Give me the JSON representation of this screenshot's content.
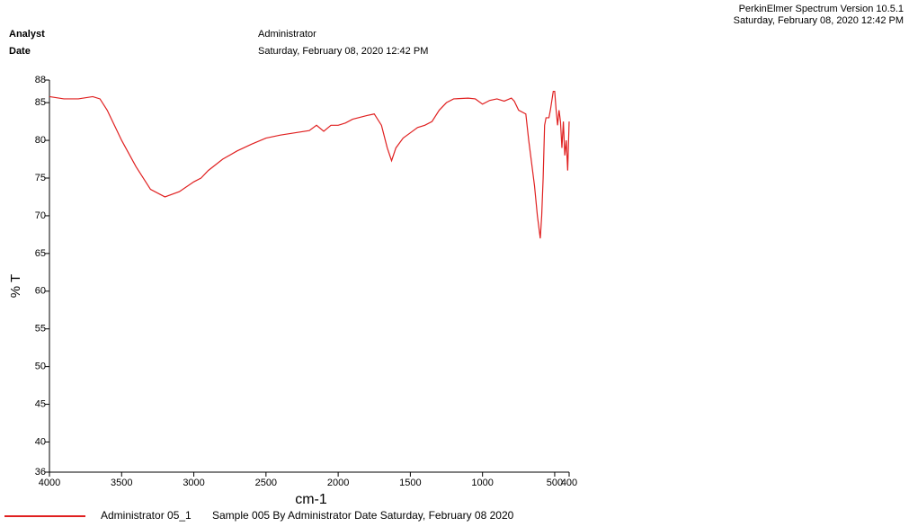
{
  "header": {
    "software": "PerkinElmer Spectrum Version 10.5.1",
    "printed": "Saturday, February 08, 2020 12:42 PM",
    "analyst_label": "Analyst",
    "analyst": "Administrator",
    "date_label": "Date",
    "date": "Saturday, February 08, 2020 12:42 PM"
  },
  "chart_data": {
    "type": "line",
    "xlabel": "cm-1",
    "ylabel": "% T",
    "x": [
      4000,
      3900,
      3800,
      3700,
      3650,
      3600,
      3500,
      3400,
      3300,
      3200,
      3100,
      3000,
      2950,
      2900,
      2800,
      2700,
      2600,
      2500,
      2400,
      2300,
      2200,
      2150,
      2100,
      2050,
      2000,
      1950,
      1900,
      1800,
      1750,
      1700,
      1660,
      1630,
      1600,
      1550,
      1500,
      1450,
      1400,
      1350,
      1300,
      1250,
      1200,
      1100,
      1050,
      1000,
      950,
      900,
      850,
      800,
      780,
      750,
      700,
      680,
      660,
      640,
      620,
      600,
      590,
      580,
      570,
      560,
      540,
      530,
      510,
      500,
      490,
      480,
      470,
      460,
      450,
      440,
      430,
      420,
      410,
      400
    ],
    "series": [
      {
        "name": "Administrator 05_1",
        "description": "Sample 005 By Administrator Date Saturday, February 08 2020",
        "color": "#e02020",
        "values": [
          85.8,
          85.5,
          85.5,
          85.8,
          85.5,
          84,
          80,
          76.5,
          73.5,
          72.5,
          73.2,
          74.5,
          75,
          76,
          77.5,
          78.6,
          79.5,
          80.3,
          80.7,
          81,
          81.3,
          82,
          81.2,
          82,
          82,
          82.3,
          82.8,
          83.3,
          83.5,
          82,
          79,
          77.3,
          79,
          80.3,
          81,
          81.7,
          82,
          82.5,
          84,
          85,
          85.5,
          85.6,
          85.5,
          84.8,
          85.3,
          85.5,
          85.2,
          85.6,
          85.2,
          84,
          83.5,
          80,
          77,
          74,
          70,
          67,
          70,
          75,
          82,
          83,
          83,
          84,
          86.5,
          86.5,
          84,
          82,
          84,
          82.5,
          79,
          82.5,
          78,
          80,
          76,
          82.5
        ]
      }
    ],
    "xlim": [
      4000,
      400
    ],
    "xticks": [
      4000,
      3500,
      3000,
      2500,
      2000,
      1500,
      1000,
      500,
      400
    ],
    "ylim": [
      36,
      88
    ],
    "yticks": [
      36,
      40,
      45,
      50,
      55,
      60,
      65,
      70,
      75,
      80,
      85,
      88
    ]
  }
}
